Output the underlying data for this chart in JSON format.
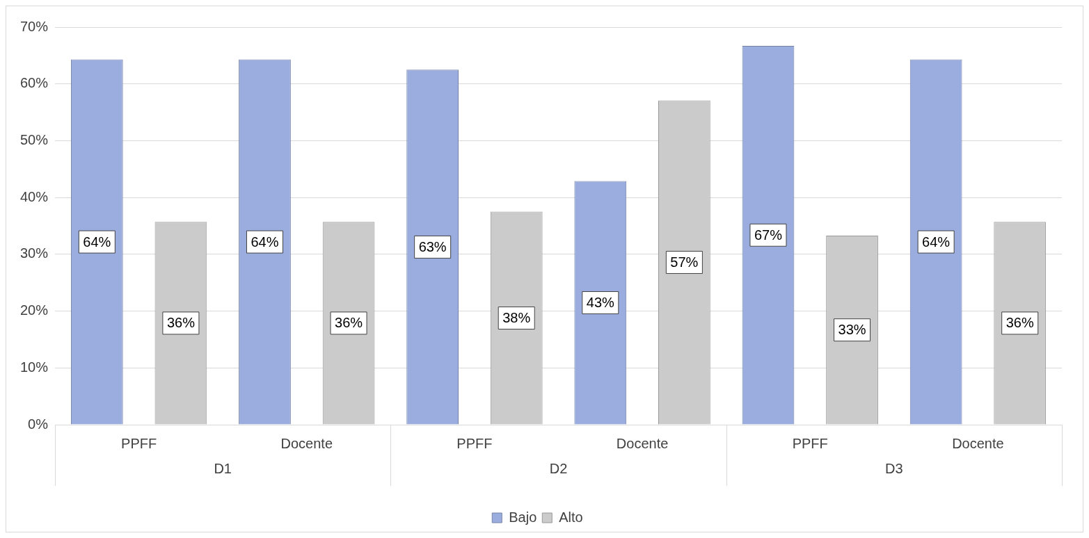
{
  "chart_data": {
    "type": "bar",
    "categories": [
      "PPFF",
      "Docente",
      "PPFF",
      "Docente",
      "PPFF",
      "Docente"
    ],
    "annotations": [
      "D1",
      "D2",
      "D3"
    ],
    "series": [
      {
        "name": "Bajo",
        "color": "#9badde",
        "values": [
          64.3,
          64.3,
          62.5,
          42.9,
          66.7,
          64.3
        ],
        "value_labels": [
          "64%",
          "64%",
          "63%",
          "43%",
          "67%",
          "64%"
        ]
      },
      {
        "name": "Alto",
        "color": "#cbcbcb",
        "values": [
          35.7,
          35.7,
          37.5,
          57.1,
          33.3,
          35.7
        ],
        "value_labels": [
          "36%",
          "36%",
          "38%",
          "57%",
          "33%",
          "36%"
        ]
      }
    ],
    "ylim": [
      0,
      70
    ],
    "yticks": [
      {
        "value": 0,
        "label": "0%"
      },
      {
        "value": 10,
        "label": "10%"
      },
      {
        "value": 20,
        "label": "20%"
      },
      {
        "value": 30,
        "label": "30%"
      },
      {
        "value": 40,
        "label": "40%"
      },
      {
        "value": 50,
        "label": "50%"
      },
      {
        "value": 60,
        "label": "60%"
      },
      {
        "value": 70,
        "label": "70%"
      }
    ],
    "grid": "y",
    "legend": "bottom"
  }
}
